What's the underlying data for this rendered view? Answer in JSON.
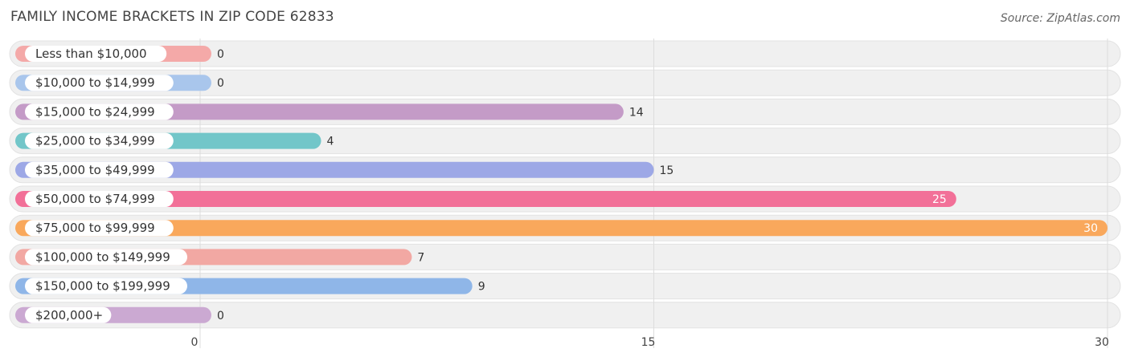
{
  "header": {
    "title": "FAMILY INCOME BRACKETS IN ZIP CODE 62833",
    "source": "Source: ZipAtlas.com"
  },
  "chart_data": {
    "type": "bar",
    "orientation": "horizontal",
    "title": "FAMILY INCOME BRACKETS IN ZIP CODE 62833",
    "xlabel": "",
    "ylabel": "",
    "xlim": [
      0,
      30
    ],
    "ticks": [
      0,
      15,
      30
    ],
    "grid": true,
    "categories": [
      "Less than $10,000",
      "$10,000 to $14,999",
      "$15,000 to $24,999",
      "$25,000 to $34,999",
      "$35,000 to $49,999",
      "$50,000 to $74,999",
      "$75,000 to $99,999",
      "$100,000 to $149,999",
      "$150,000 to $199,999",
      "$200,000+"
    ],
    "values": [
      0,
      0,
      14,
      4,
      15,
      25,
      30,
      7,
      9,
      0
    ],
    "colors": [
      "#f4a9a8",
      "#a9c6ec",
      "#c49bc7",
      "#72c6c9",
      "#9da8e6",
      "#f27098",
      "#f9a85c",
      "#f2a8a3",
      "#8fb6e8",
      "#cba9d2"
    ],
    "track_color": "#f0f0f0"
  }
}
